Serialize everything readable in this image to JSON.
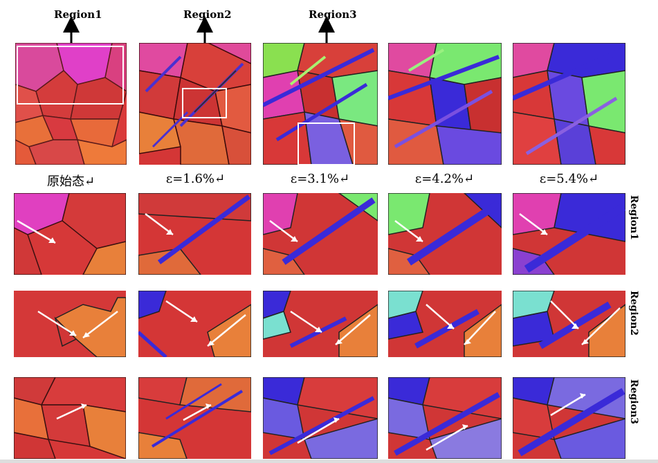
{
  "figure": {
    "region_labels": [
      "Region1",
      "Region2",
      "Region3"
    ],
    "column_labels": [
      "原始态↵",
      "ε=1.6%↵",
      "ε=3.1%↵",
      "ε=4.2%↵",
      "ε=5.4%↵"
    ],
    "row_labels": [
      "Region1",
      "Region2",
      "Region3"
    ]
  }
}
